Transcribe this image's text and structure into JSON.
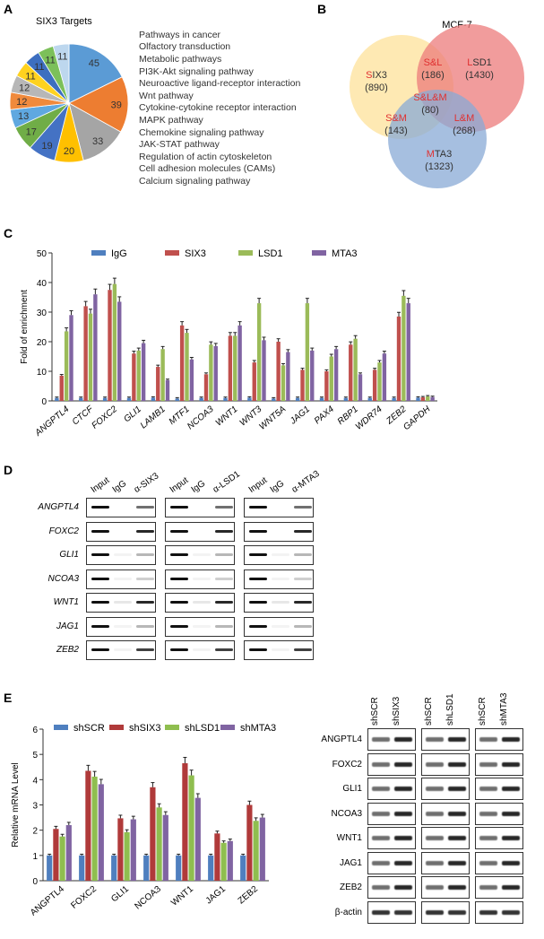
{
  "panels": {
    "a": "A",
    "b": "B",
    "c": "C",
    "d": "D",
    "e": "E"
  },
  "chart_data": [
    {
      "type": "pie",
      "title": "SIX3 Targets",
      "labels": [
        "Pathways in cancer",
        "Olfactory transduction",
        "Metabolic pathways",
        "PI3K-Akt signaling pathway",
        "Neuroactive ligand-receptor interaction",
        "Wnt pathway",
        "Cytokine-cytokine receptor interaction",
        "MAPK pathway",
        "Chemokine signaling pathway",
        "JAK-STAT pathway",
        "Regulation of actin cytoskeleton",
        "Cell adhesion molecules (CAMs)",
        "Calcium signaling pathway"
      ],
      "values": [
        45,
        39,
        33,
        20,
        19,
        17,
        13,
        12,
        12,
        11,
        11,
        11,
        11
      ],
      "colors": [
        "#5b9bd5",
        "#ed7d31",
        "#a5a5a5",
        "#ffc000",
        "#4472c4",
        "#70ad47",
        "#5fa8e0",
        "#f08a3c",
        "#b7b7b7",
        "#ffd21f",
        "#3d6fc0",
        "#7cc05a",
        "#bdd7ee"
      ],
      "legend": "right"
    },
    {
      "type": "venn",
      "title": "MCF-7",
      "sets": [
        {
          "name": "SIX3",
          "initial": "S",
          "rest": "IX3",
          "count": "(890)",
          "color": "#fde29a"
        },
        {
          "name": "LSD1",
          "initial": "L",
          "rest": "SD1",
          "count": "(1430)",
          "color": "#ec7b7b"
        },
        {
          "name": "MTA3",
          "initial": "M",
          "rest": "TA3",
          "count": "(1323)",
          "color": "#88a9d6"
        }
      ],
      "overlaps": [
        {
          "name": "S&L",
          "count": "(186)"
        },
        {
          "name": "S&M",
          "count": "(143)"
        },
        {
          "name": "L&M",
          "count": "(268)"
        },
        {
          "name": "S&L&M",
          "count": "(80)"
        }
      ]
    },
    {
      "type": "bar",
      "ylabel": "Fold of enrichment",
      "ylim": [
        0,
        50
      ],
      "yticks": [
        0,
        10,
        20,
        30,
        40,
        50
      ],
      "legend": "top",
      "categories": [
        "ANGPTL4",
        "CTCF",
        "FOXC2",
        "GLI1",
        "LAMB1",
        "MTF1",
        "NCOA3",
        "WNT1",
        "WNT3",
        "WNT5A",
        "JAG1",
        "PAX4",
        "RBP1",
        "WDR74",
        "ZEB2",
        "GAPDH"
      ],
      "series": [
        {
          "name": "IgG",
          "color": "#4f7fbf",
          "values": [
            1,
            1,
            1,
            1,
            1.1,
            0.8,
            1,
            1,
            1.1,
            0.8,
            1,
            1,
            1,
            1,
            1,
            1.1
          ]
        },
        {
          "name": "SIX3",
          "color": "#c0504d",
          "values": [
            8.5,
            32,
            37.5,
            16,
            11.5,
            25.5,
            9,
            22,
            13,
            20,
            10.5,
            10,
            19,
            10.5,
            28.5,
            1.2
          ]
        },
        {
          "name": "LSD1",
          "color": "#9bbb59",
          "values": [
            23.5,
            29.5,
            39.5,
            17,
            17.5,
            23,
            19,
            22,
            33,
            12,
            33,
            15,
            21,
            13,
            35.5,
            1.5
          ]
        },
        {
          "name": "MTA3",
          "color": "#8064a2",
          "values": [
            29,
            36,
            33.5,
            19.5,
            7,
            14,
            18.5,
            25.5,
            20.5,
            16.5,
            17,
            17.5,
            9,
            16,
            33,
            1.3
          ]
        }
      ]
    },
    {
      "type": "bar",
      "ylabel": "Relative mRNA Level",
      "ylim": [
        0,
        6
      ],
      "yticks": [
        0,
        1,
        2,
        3,
        4,
        5,
        6
      ],
      "legend": "top",
      "categories": [
        "ANGPTL4",
        "FOXC2",
        "GLI1",
        "NCOA3",
        "WNT1",
        "JAG1",
        "ZEB2"
      ],
      "series": [
        {
          "name": "shSCR",
          "color": "#4f7fbf",
          "values": [
            1,
            1,
            1,
            1,
            1,
            1,
            1
          ]
        },
        {
          "name": "shSIX3",
          "color": "#b03a3a",
          "values": [
            2.05,
            4.35,
            2.47,
            3.7,
            4.65,
            1.87,
            3.0
          ]
        },
        {
          "name": "shLSD1",
          "color": "#8fbe4f",
          "values": [
            1.75,
            4.12,
            1.92,
            2.9,
            4.17,
            1.5,
            2.37
          ]
        },
        {
          "name": "shMTA3",
          "color": "#8064a2",
          "values": [
            2.2,
            3.82,
            2.43,
            2.6,
            3.28,
            1.57,
            2.5
          ]
        }
      ]
    }
  ],
  "chip": {
    "genes": [
      "ANGPTL4",
      "FOXC2",
      "GLI1",
      "NCOA3",
      "WNT1",
      "JAG1",
      "ZEB2"
    ],
    "groups": [
      {
        "cols": [
          "Input",
          "IgG",
          "α-SIX3"
        ]
      },
      {
        "cols": [
          "Input",
          "IgG",
          "α-LSD1"
        ]
      },
      {
        "cols": [
          "Input",
          "IgG",
          "α-MTA3"
        ]
      }
    ]
  },
  "western": {
    "rows": [
      "ANGPTL4",
      "FOXC2",
      "GLI1",
      "NCOA3",
      "WNT1",
      "JAG1",
      "ZEB2",
      "β-actin"
    ],
    "groups": [
      {
        "cols": [
          "shSCR",
          "shSIX3"
        ]
      },
      {
        "cols": [
          "shSCR",
          "shLSD1"
        ]
      },
      {
        "cols": [
          "shSCR",
          "shMTA3"
        ]
      }
    ]
  }
}
